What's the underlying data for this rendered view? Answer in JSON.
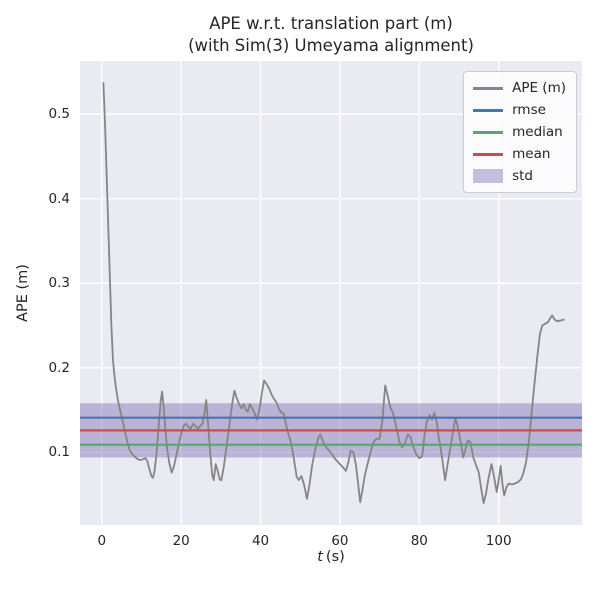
{
  "figure": {
    "title_line1": "APE w.r.t. translation part (m)",
    "title_line2": "(with Sim(3) Umeyama alignment)",
    "ylabel": "APE (m)",
    "xlabel_var": "t",
    "xlabel_unit": "(s)"
  },
  "legend": {
    "entries": [
      {
        "label": "APE (m)",
        "kind": "line",
        "color": "#858585"
      },
      {
        "label": "rmse",
        "kind": "line",
        "color": "#4c72b0"
      },
      {
        "label": "median",
        "kind": "line",
        "color": "#55a868"
      },
      {
        "label": "mean",
        "kind": "line",
        "color": "#c44e52"
      },
      {
        "label": "std",
        "kind": "patch",
        "color": "rgba(129,114,178,0.45)"
      }
    ]
  },
  "colors": {
    "figure_bg": "#ffffff",
    "panel_bg": "#eaeaf2",
    "grid": "#ffffff",
    "text": "#262626",
    "ape_line": "#858585",
    "rmse": "#4c72b0",
    "median": "#55a868",
    "mean": "#c44e52",
    "std_fill": "#8172b2"
  },
  "chart_data": {
    "type": "line",
    "title": "APE w.r.t. translation part (m) (with Sim(3) Umeyama alignment)",
    "xlabel": "t (s)",
    "ylabel": "APE (m)",
    "xlim": [
      -5.5,
      121
    ],
    "ylim": [
      0.014,
      0.563
    ],
    "xticks": [
      0,
      20,
      40,
      60,
      80,
      100
    ],
    "yticks": [
      0.1,
      0.2,
      0.3,
      0.4,
      0.5
    ],
    "grid": true,
    "legend_position": "upper right",
    "stats": {
      "rmse": 0.141,
      "mean": 0.126,
      "median": 0.109,
      "std": 0.032
    },
    "stat_lines": [
      {
        "name": "rmse",
        "value": 0.141,
        "color": "#4c72b0"
      },
      {
        "name": "median",
        "value": 0.109,
        "color": "#55a868"
      },
      {
        "name": "mean",
        "value": 0.126,
        "color": "#c44e52"
      }
    ],
    "std_band": {
      "name": "std",
      "lower": 0.094,
      "upper": 0.158,
      "color": "#8172b2",
      "opacity": 0.45
    },
    "series": [
      {
        "name": "APE (m)",
        "color": "#858585",
        "points": [
          [
            0.4,
            0.537
          ],
          [
            0.8,
            0.49
          ],
          [
            1.2,
            0.43
          ],
          [
            1.6,
            0.37
          ],
          [
            2,
            0.31
          ],
          [
            2.4,
            0.25
          ],
          [
            2.8,
            0.21
          ],
          [
            3.2,
            0.19
          ],
          [
            3.6,
            0.175
          ],
          [
            4,
            0.163
          ],
          [
            4.5,
            0.152
          ],
          [
            5,
            0.142
          ],
          [
            5.5,
            0.132
          ],
          [
            6,
            0.121
          ],
          [
            6.5,
            0.111
          ],
          [
            7,
            0.103
          ],
          [
            7.5,
            0.099
          ],
          [
            8,
            0.096
          ],
          [
            8.5,
            0.094
          ],
          [
            9,
            0.092
          ],
          [
            9.5,
            0.091
          ],
          [
            10,
            0.091
          ],
          [
            10.5,
            0.092
          ],
          [
            11,
            0.093
          ],
          [
            11.5,
            0.089
          ],
          [
            12,
            0.08
          ],
          [
            12.5,
            0.072
          ],
          [
            12.9,
            0.07
          ],
          [
            13.3,
            0.078
          ],
          [
            13.8,
            0.1
          ],
          [
            14.3,
            0.13
          ],
          [
            14.8,
            0.16
          ],
          [
            15.2,
            0.172
          ],
          [
            15.6,
            0.153
          ],
          [
            16,
            0.128
          ],
          [
            16.5,
            0.103
          ],
          [
            17,
            0.087
          ],
          [
            17.6,
            0.076
          ],
          [
            18.2,
            0.084
          ],
          [
            18.8,
            0.097
          ],
          [
            19.4,
            0.11
          ],
          [
            20,
            0.122
          ],
          [
            20.6,
            0.131
          ],
          [
            21.2,
            0.134
          ],
          [
            21.8,
            0.13
          ],
          [
            22.4,
            0.128
          ],
          [
            23,
            0.134
          ],
          [
            23.6,
            0.131
          ],
          [
            24.2,
            0.128
          ],
          [
            24.8,
            0.131
          ],
          [
            25.4,
            0.134
          ],
          [
            26,
            0.15
          ],
          [
            26.3,
            0.162
          ],
          [
            26.8,
            0.132
          ],
          [
            27.3,
            0.1
          ],
          [
            27.8,
            0.074
          ],
          [
            28.2,
            0.067
          ],
          [
            28.7,
            0.086
          ],
          [
            29.2,
            0.078
          ],
          [
            29.7,
            0.068
          ],
          [
            30.1,
            0.067
          ],
          [
            30.7,
            0.082
          ],
          [
            31.4,
            0.106
          ],
          [
            32.1,
            0.131
          ],
          [
            32.8,
            0.156
          ],
          [
            33.4,
            0.173
          ],
          [
            34,
            0.164
          ],
          [
            34.6,
            0.157
          ],
          [
            35.2,
            0.152
          ],
          [
            35.7,
            0.157
          ],
          [
            36.2,
            0.151
          ],
          [
            36.8,
            0.148
          ],
          [
            37.3,
            0.157
          ],
          [
            37.9,
            0.152
          ],
          [
            38.5,
            0.146
          ],
          [
            39.1,
            0.139
          ],
          [
            39.7,
            0.15
          ],
          [
            40.3,
            0.17
          ],
          [
            40.9,
            0.185
          ],
          [
            41.5,
            0.181
          ],
          [
            42.2,
            0.175
          ],
          [
            42.8,
            0.168
          ],
          [
            43.4,
            0.163
          ],
          [
            44,
            0.159
          ],
          [
            44.6,
            0.152
          ],
          [
            45.2,
            0.147
          ],
          [
            45.8,
            0.146
          ],
          [
            46.4,
            0.133
          ],
          [
            47,
            0.122
          ],
          [
            47.6,
            0.113
          ],
          [
            48.3,
            0.095
          ],
          [
            49.1,
            0.071
          ],
          [
            49.6,
            0.067
          ],
          [
            50.3,
            0.072
          ],
          [
            50.9,
            0.063
          ],
          [
            51.7,
            0.045
          ],
          [
            52.3,
            0.061
          ],
          [
            53,
            0.085
          ],
          [
            53.8,
            0.104
          ],
          [
            54.6,
            0.118
          ],
          [
            55.1,
            0.121
          ],
          [
            55.7,
            0.113
          ],
          [
            56.4,
            0.107
          ],
          [
            57.1,
            0.103
          ],
          [
            57.8,
            0.099
          ],
          [
            58.5,
            0.094
          ],
          [
            59.2,
            0.09
          ],
          [
            60,
            0.086
          ],
          [
            60.8,
            0.082
          ],
          [
            61.5,
            0.078
          ],
          [
            62.1,
            0.088
          ],
          [
            62.7,
            0.102
          ],
          [
            63.4,
            0.1
          ],
          [
            64,
            0.086
          ],
          [
            64.6,
            0.062
          ],
          [
            65.1,
            0.041
          ],
          [
            65.7,
            0.056
          ],
          [
            66.3,
            0.073
          ],
          [
            66.9,
            0.085
          ],
          [
            67.6,
            0.098
          ],
          [
            68.4,
            0.112
          ],
          [
            69.2,
            0.116
          ],
          [
            70,
            0.116
          ],
          [
            70.7,
            0.138
          ],
          [
            71.4,
            0.179
          ],
          [
            72,
            0.168
          ],
          [
            72.7,
            0.153
          ],
          [
            73.4,
            0.146
          ],
          [
            74.2,
            0.13
          ],
          [
            75,
            0.112
          ],
          [
            75.7,
            0.106
          ],
          [
            76.4,
            0.111
          ],
          [
            77.1,
            0.121
          ],
          [
            77.7,
            0.119
          ],
          [
            78.4,
            0.108
          ],
          [
            79.2,
            0.098
          ],
          [
            80,
            0.093
          ],
          [
            80.7,
            0.095
          ],
          [
            81.3,
            0.12
          ],
          [
            81.9,
            0.136
          ],
          [
            82.6,
            0.144
          ],
          [
            83.2,
            0.139
          ],
          [
            83.8,
            0.147
          ],
          [
            84.4,
            0.135
          ],
          [
            84.9,
            0.118
          ],
          [
            85.7,
            0.095
          ],
          [
            86.5,
            0.067
          ],
          [
            87.1,
            0.085
          ],
          [
            87.8,
            0.104
          ],
          [
            88.5,
            0.124
          ],
          [
            89.1,
            0.141
          ],
          [
            89.7,
            0.13
          ],
          [
            90.3,
            0.115
          ],
          [
            91.1,
            0.094
          ],
          [
            91.6,
            0.103
          ],
          [
            92.2,
            0.114
          ],
          [
            92.9,
            0.112
          ],
          [
            93.6,
            0.094
          ],
          [
            94.3,
            0.085
          ],
          [
            95,
            0.076
          ],
          [
            95.6,
            0.057
          ],
          [
            96.2,
            0.04
          ],
          [
            96.8,
            0.051
          ],
          [
            97.4,
            0.068
          ],
          [
            98.2,
            0.086
          ],
          [
            98.8,
            0.072
          ],
          [
            99.5,
            0.053
          ],
          [
            100.1,
            0.07
          ],
          [
            100.5,
            0.084
          ],
          [
            101,
            0.061
          ],
          [
            101.4,
            0.049
          ],
          [
            101.9,
            0.058
          ],
          [
            102.5,
            0.063
          ],
          [
            103.3,
            0.062
          ],
          [
            104.1,
            0.063
          ],
          [
            104.9,
            0.065
          ],
          [
            105.6,
            0.068
          ],
          [
            106.2,
            0.075
          ],
          [
            106.9,
            0.088
          ],
          [
            107.6,
            0.112
          ],
          [
            108.3,
            0.146
          ],
          [
            109,
            0.18
          ],
          [
            109.7,
            0.212
          ],
          [
            110.4,
            0.24
          ],
          [
            111,
            0.25
          ],
          [
            111.7,
            0.252
          ],
          [
            112.4,
            0.254
          ],
          [
            113,
            0.259
          ],
          [
            113.5,
            0.262
          ],
          [
            114.1,
            0.257
          ],
          [
            114.8,
            0.255
          ],
          [
            115.6,
            0.256
          ],
          [
            116.4,
            0.257
          ]
        ]
      }
    ]
  }
}
